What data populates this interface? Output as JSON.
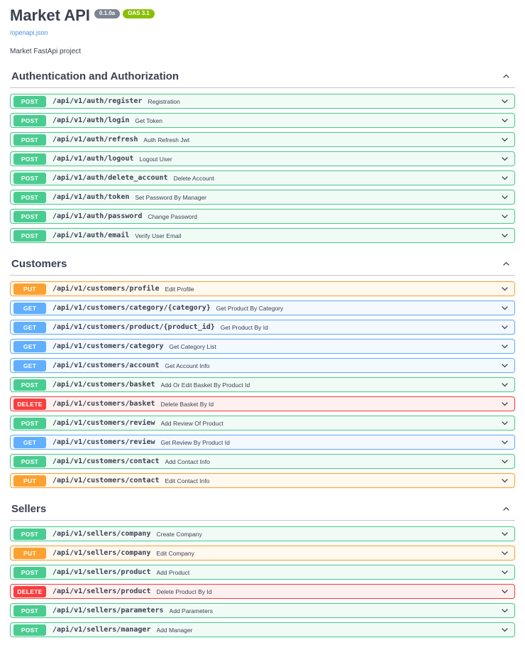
{
  "header": {
    "title": "Market API",
    "version_badge": "0.1.0a",
    "oas_badge": "OAS 3.1",
    "spec_link": "/openapi.json",
    "description": "Market FastApi project"
  },
  "colors": {
    "text": "#3b4151",
    "version_badge_bg": "#7d8492",
    "oas_badge_bg": "#89bf04",
    "link": "#4990e2",
    "methods": {
      "POST": {
        "accent": "#49cc90",
        "row_bg": "rgba(73,204,144,0.08)"
      },
      "GET": {
        "accent": "#61affe",
        "row_bg": "rgba(97,175,254,0.08)"
      },
      "PUT": {
        "accent": "#fca130",
        "row_bg": "rgba(252,161,48,0.08)"
      },
      "DELETE": {
        "accent": "#f93e3e",
        "row_bg": "rgba(249,62,62,0.08)"
      }
    }
  },
  "sections": [
    {
      "title": "Authentication and Authorization",
      "expanded": true,
      "endpoints": [
        {
          "method": "POST",
          "path": "/api/v1/auth/register",
          "summary": "Registration"
        },
        {
          "method": "POST",
          "path": "/api/v1/auth/login",
          "summary": "Get Token"
        },
        {
          "method": "POST",
          "path": "/api/v1/auth/refresh",
          "summary": "Auth Refresh Jwt"
        },
        {
          "method": "POST",
          "path": "/api/v1/auth/logout",
          "summary": "Logout User"
        },
        {
          "method": "POST",
          "path": "/api/v1/auth/delete_account",
          "summary": "Delete Account"
        },
        {
          "method": "POST",
          "path": "/api/v1/auth/token",
          "summary": "Set Password By Manager"
        },
        {
          "method": "POST",
          "path": "/api/v1/auth/password",
          "summary": "Change Password"
        },
        {
          "method": "POST",
          "path": "/api/v1/auth/email",
          "summary": "Verify User Email"
        }
      ]
    },
    {
      "title": "Customers",
      "expanded": true,
      "endpoints": [
        {
          "method": "PUT",
          "path": "/api/v1/customers/profile",
          "summary": "Edit Profile"
        },
        {
          "method": "GET",
          "path": "/api/v1/customers/category/{category}",
          "summary": "Get Product By Category"
        },
        {
          "method": "GET",
          "path": "/api/v1/customers/product/{product_id}",
          "summary": "Get Product By Id"
        },
        {
          "method": "GET",
          "path": "/api/v1/customers/category",
          "summary": "Get Category List"
        },
        {
          "method": "GET",
          "path": "/api/v1/customers/account",
          "summary": "Get Account Info"
        },
        {
          "method": "POST",
          "path": "/api/v1/customers/basket",
          "summary": "Add Or Edit Basket By Product Id"
        },
        {
          "method": "DELETE",
          "path": "/api/v1/customers/basket",
          "summary": "Delete Basket By Id"
        },
        {
          "method": "POST",
          "path": "/api/v1/customers/review",
          "summary": "Add Review Of Product"
        },
        {
          "method": "GET",
          "path": "/api/v1/customers/review",
          "summary": "Get Review By Product Id"
        },
        {
          "method": "POST",
          "path": "/api/v1/customers/contact",
          "summary": "Add Contact Info"
        },
        {
          "method": "PUT",
          "path": "/api/v1/customers/contact",
          "summary": "Edit Contact Info"
        }
      ]
    },
    {
      "title": "Sellers",
      "expanded": true,
      "endpoints": [
        {
          "method": "POST",
          "path": "/api/v1/sellers/company",
          "summary": "Create Company"
        },
        {
          "method": "PUT",
          "path": "/api/v1/sellers/company",
          "summary": "Edit Company"
        },
        {
          "method": "POST",
          "path": "/api/v1/sellers/product",
          "summary": "Add Product"
        },
        {
          "method": "DELETE",
          "path": "/api/v1/sellers/product",
          "summary": "Delete Product By Id"
        },
        {
          "method": "POST",
          "path": "/api/v1/sellers/parameters",
          "summary": "Add Parameters"
        },
        {
          "method": "POST",
          "path": "/api/v1/sellers/manager",
          "summary": "Add Manager"
        }
      ]
    }
  ]
}
